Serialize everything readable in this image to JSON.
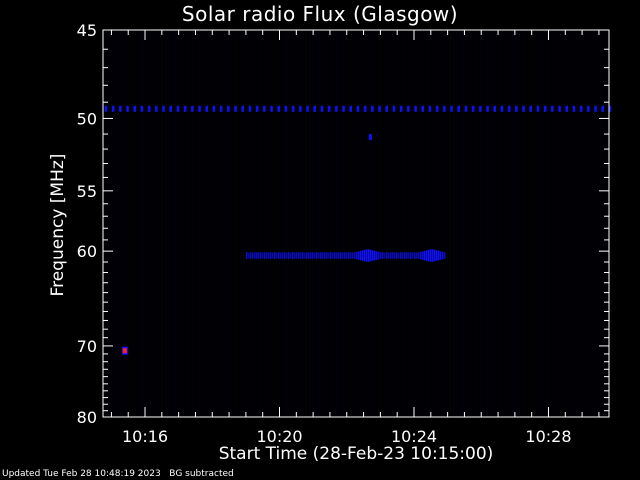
{
  "chart_data": {
    "type": "heatmap",
    "title": "Solar radio Flux (Glasgow)",
    "xlabel": "Start Time (28-Feb-23 10:15:00)",
    "ylabel": "Frequency [MHz]",
    "x_ticks": [
      "10:16",
      "10:20",
      "10:24",
      "10:28"
    ],
    "x_tick_minutes": [
      16,
      20,
      24,
      28
    ],
    "xlim_minutes": [
      14.75,
      29.8
    ],
    "y_ticks": [
      45,
      50,
      55,
      60,
      70,
      80
    ],
    "ylim": [
      45,
      80
    ],
    "y_scale": "reciprocal",
    "background_color": "#000000",
    "signal_color": "#1010ff",
    "hot_color": "#ff2020",
    "features": [
      {
        "kind": "dashed-line",
        "freq": 49.4,
        "t_start": 14.8,
        "t_end": 29.8
      },
      {
        "kind": "blob",
        "freq": 51.2,
        "t": 22.7
      },
      {
        "kind": "band",
        "freq": 60.4,
        "t_start": 19.0,
        "t_end": 24.9,
        "peaks": [
          [
            22.6,
            1.0
          ],
          [
            24.5,
            1.0
          ]
        ]
      },
      {
        "kind": "hot-spot",
        "freq": 70.6,
        "t": 15.4
      }
    ]
  },
  "footer": {
    "updated": "Updated Tue Feb 28 10:48:19 2023",
    "note": "BG subtracted"
  }
}
